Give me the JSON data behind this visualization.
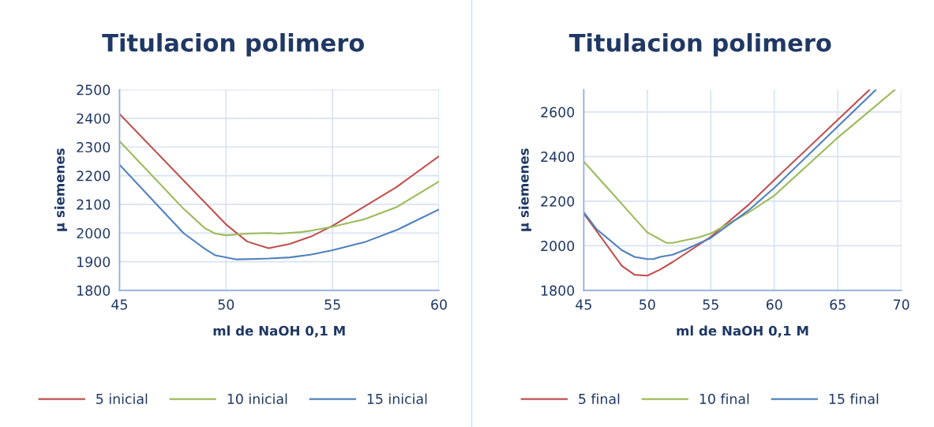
{
  "chart_data": [
    {
      "type": "line",
      "title": "Titulacion polimero",
      "xlabel": "ml de NaOH 0,1 M",
      "ylabel": "μ siemenes",
      "xlim": [
        45,
        60
      ],
      "xticks": [
        45,
        50,
        55,
        60
      ],
      "ylim": [
        1800,
        2500
      ],
      "yticks": [
        1800,
        1900,
        2000,
        2100,
        2200,
        2300,
        2400,
        2500
      ],
      "grid": true,
      "legend": "bottom",
      "marker": "none",
      "line_style": "solid",
      "series": [
        {
          "name": "5 inicial",
          "color": "#c0504d",
          "x": [
            45,
            50,
            51,
            52,
            53,
            54,
            55,
            58,
            60
          ],
          "values": [
            2415,
            2030,
            1970,
            1947,
            1962,
            1988,
            2025,
            2160,
            2268
          ]
        },
        {
          "name": "10 inicial",
          "color": "#9bbb59",
          "x": [
            45,
            48,
            49,
            49.5,
            50,
            51,
            52,
            52.5,
            53.5,
            54,
            55,
            56.5,
            58,
            60
          ],
          "values": [
            2320,
            2085,
            2017,
            1998,
            1992,
            1998,
            2000,
            1998,
            2003,
            2008,
            2022,
            2048,
            2090,
            2180
          ]
        },
        {
          "name": "15 inicial",
          "color": "#4f81bd",
          "x": [
            45,
            48,
            49,
            49.5,
            50.5,
            51.5,
            52,
            53,
            54,
            55,
            56.5,
            58,
            60
          ],
          "values": [
            2238,
            2000,
            1945,
            1922,
            1908,
            1910,
            1911,
            1915,
            1925,
            1940,
            1968,
            2010,
            2082
          ]
        }
      ]
    },
    {
      "type": "line",
      "title": "Titulacion polimero",
      "xlabel": "ml de NaOH 0,1 M",
      "ylabel": "μ siemenes",
      "xlim": [
        45,
        70
      ],
      "xticks": [
        45,
        50,
        55,
        60,
        65,
        70
      ],
      "ylim": [
        1800,
        2700
      ],
      "yticks": [
        1800,
        2000,
        2200,
        2400,
        2600
      ],
      "grid": true,
      "legend": "bottom",
      "marker": "none",
      "line_style": "solid",
      "series": [
        {
          "name": "5 final",
          "color": "#c0504d",
          "x": [
            45,
            48,
            49,
            50,
            51,
            52,
            55,
            58,
            60,
            65,
            67.5
          ],
          "values": [
            2145,
            1910,
            1870,
            1866,
            1893,
            1927,
            2040,
            2185,
            2295,
            2565,
            2700
          ]
        },
        {
          "name": "10 final",
          "color": "#9bbb59",
          "x": [
            45,
            50,
            51.5,
            52,
            53,
            54,
            55,
            58,
            60,
            65,
            69.5
          ],
          "values": [
            2378,
            2060,
            2013,
            2013,
            2025,
            2037,
            2055,
            2150,
            2225,
            2485,
            2700
          ]
        },
        {
          "name": "15 final",
          "color": "#4f81bd",
          "x": [
            45,
            46,
            48,
            49,
            50,
            50.5,
            51,
            52,
            53,
            55,
            58,
            60,
            65,
            68
          ],
          "values": [
            2150,
            2075,
            1980,
            1950,
            1940,
            1940,
            1950,
            1960,
            1983,
            2035,
            2160,
            2260,
            2535,
            2700
          ]
        }
      ]
    }
  ]
}
